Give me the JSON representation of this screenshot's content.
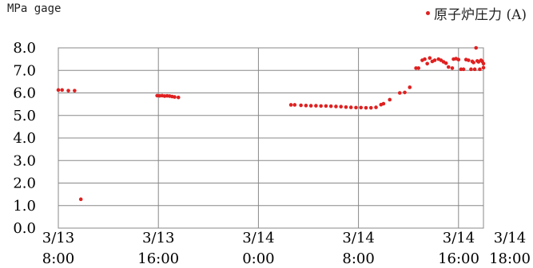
{
  "chart_data": {
    "type": "scatter",
    "title": "",
    "ylabel": "MPa gage",
    "xlabel": "",
    "ylim": [
      0,
      8
    ],
    "y_ticks": [
      "8.0",
      "7.0",
      "6.0",
      "5.0",
      "4.0",
      "3.0",
      "2.0",
      "1.0",
      "0.0"
    ],
    "x_ticks": [
      {
        "date": "3/13",
        "time": "8:00"
      },
      {
        "date": "3/13",
        "time": "16:00"
      },
      {
        "date": "3/14",
        "time": "0:00"
      },
      {
        "date": "3/14",
        "time": "8:00"
      },
      {
        "date": "3/14",
        "time": "16:00"
      },
      {
        "date": "3/14",
        "time": "18:00"
      }
    ],
    "x_unit": "hours since 3/13 0:00",
    "xlim": [
      8,
      42
    ],
    "grid": true,
    "legend_position": "top-right",
    "series": [
      {
        "name": "原子炉圧力 (A)",
        "color": "#e02020",
        "points": [
          [
            8.0,
            6.13
          ],
          [
            8.3,
            6.13
          ],
          [
            8.8,
            6.1
          ],
          [
            9.3,
            6.1
          ],
          [
            9.8,
            1.28
          ],
          [
            15.9,
            5.88
          ],
          [
            16.1,
            5.87
          ],
          [
            16.3,
            5.88
          ],
          [
            16.5,
            5.86
          ],
          [
            16.7,
            5.87
          ],
          [
            16.9,
            5.86
          ],
          [
            17.1,
            5.84
          ],
          [
            17.3,
            5.82
          ],
          [
            17.6,
            5.8
          ],
          [
            26.6,
            5.47
          ],
          [
            26.9,
            5.47
          ],
          [
            27.4,
            5.45
          ],
          [
            27.8,
            5.44
          ],
          [
            28.2,
            5.43
          ],
          [
            28.6,
            5.43
          ],
          [
            29.0,
            5.42
          ],
          [
            29.4,
            5.42
          ],
          [
            29.8,
            5.41
          ],
          [
            30.2,
            5.4
          ],
          [
            30.6,
            5.39
          ],
          [
            31.0,
            5.37
          ],
          [
            31.4,
            5.36
          ],
          [
            31.8,
            5.35
          ],
          [
            32.2,
            5.35
          ],
          [
            32.6,
            5.34
          ],
          [
            33.0,
            5.34
          ],
          [
            33.4,
            5.36
          ],
          [
            33.8,
            5.48
          ],
          [
            34.0,
            5.52
          ],
          [
            34.5,
            5.7
          ],
          [
            35.3,
            6.0
          ],
          [
            35.7,
            6.02
          ],
          [
            36.1,
            6.25
          ],
          [
            36.6,
            7.1
          ],
          [
            36.8,
            7.1
          ],
          [
            37.1,
            7.45
          ],
          [
            37.3,
            7.5
          ],
          [
            37.5,
            7.3
          ],
          [
            37.7,
            7.55
          ],
          [
            37.9,
            7.4
          ],
          [
            38.1,
            7.45
          ],
          [
            38.4,
            7.5
          ],
          [
            38.6,
            7.45
          ],
          [
            38.8,
            7.38
          ],
          [
            39.0,
            7.32
          ],
          [
            39.2,
            7.15
          ],
          [
            39.5,
            7.1
          ],
          [
            39.6,
            7.5
          ],
          [
            39.8,
            7.52
          ],
          [
            40.0,
            7.48
          ],
          [
            40.2,
            7.05
          ],
          [
            40.4,
            7.05
          ],
          [
            40.6,
            7.48
          ],
          [
            40.8,
            7.45
          ],
          [
            41.0,
            7.05
          ],
          [
            41.1,
            7.4
          ],
          [
            41.2,
            7.35
          ],
          [
            41.3,
            7.05
          ],
          [
            41.4,
            8.0
          ],
          [
            41.5,
            7.42
          ],
          [
            41.6,
            7.38
          ],
          [
            41.7,
            7.05
          ],
          [
            41.8,
            7.45
          ],
          [
            41.9,
            7.4
          ],
          [
            42.0,
            7.3
          ],
          [
            42.0,
            7.12
          ]
        ]
      }
    ]
  }
}
